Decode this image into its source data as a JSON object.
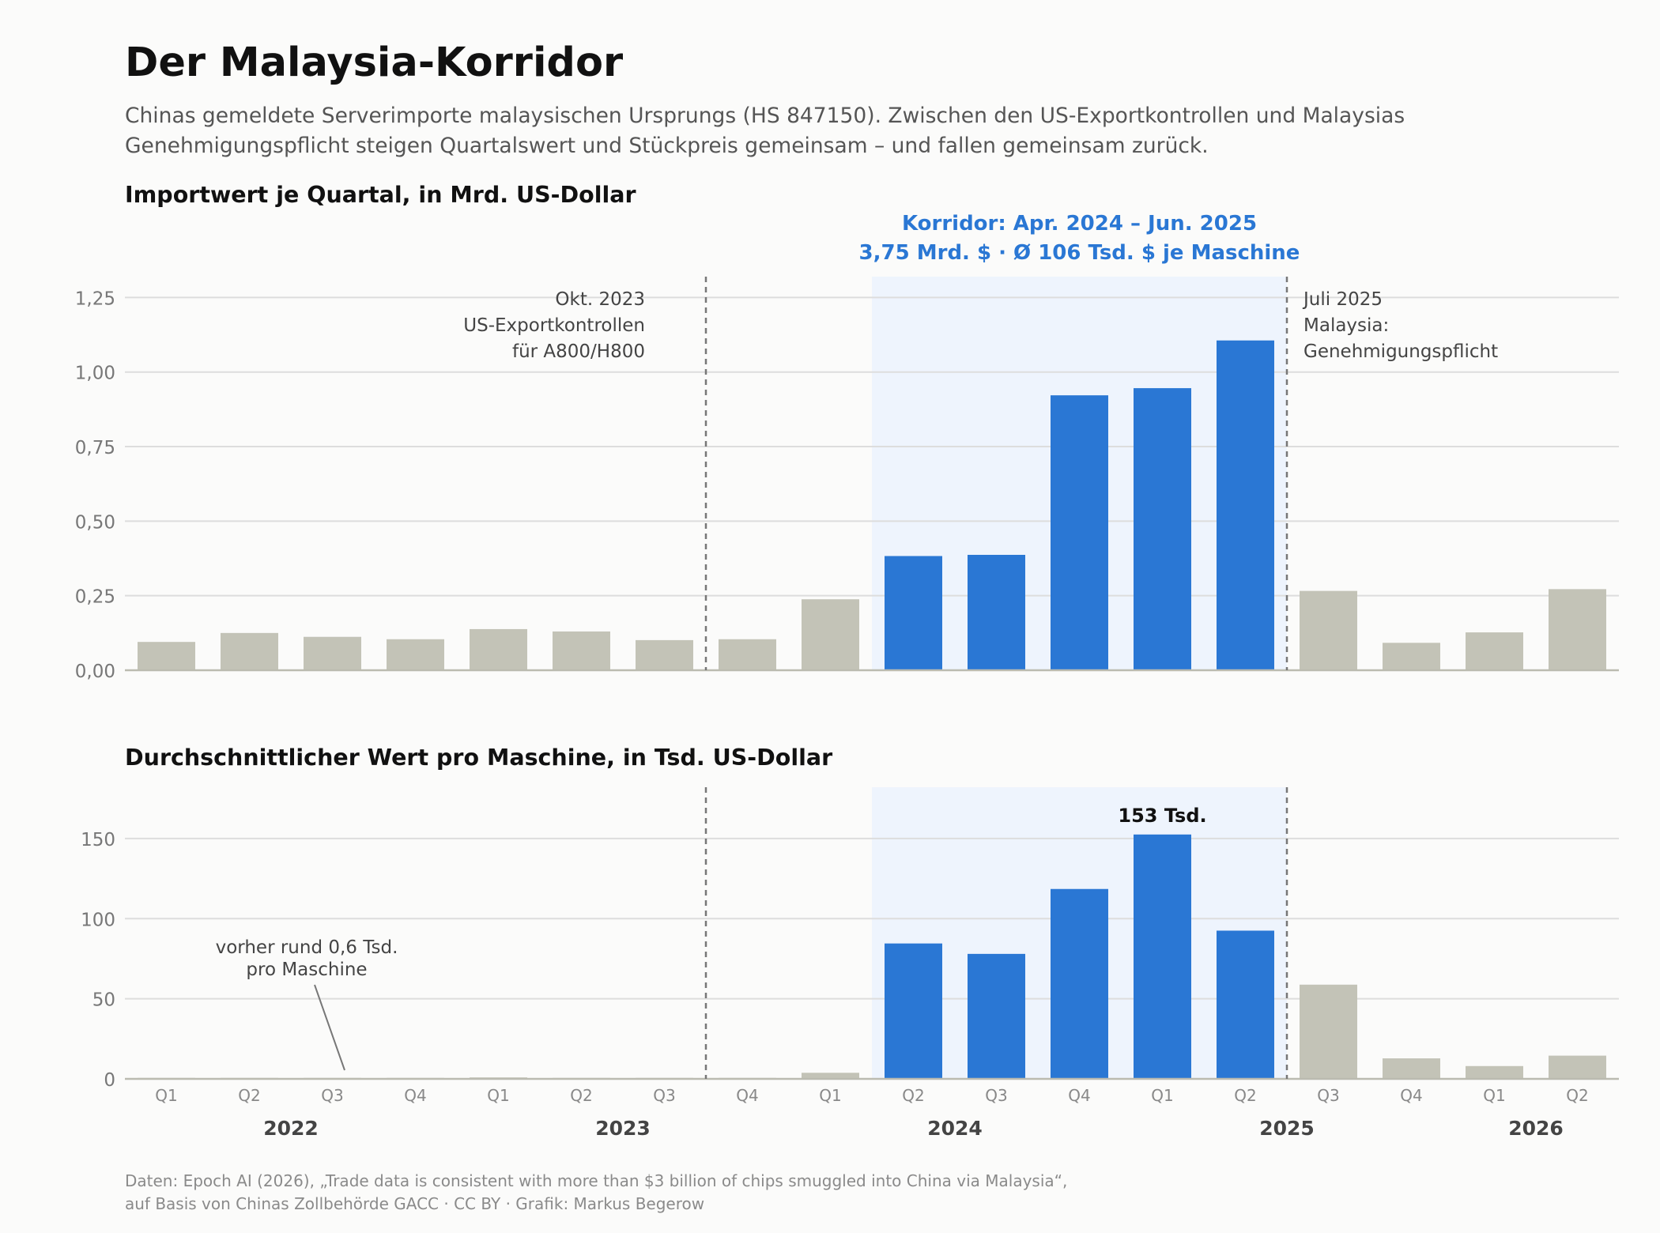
{
  "header": {
    "title": "Der Malaysia-Korridor",
    "subtitle_line1": "Chinas gemeldete Serverimporte malaysischen Ursprungs (HS 847150). Zwischen den US-Exportkontrollen und Malaysias",
    "subtitle_line2": "Genehmigungspflicht steigen Quartalswert und Stückpreis gemeinsam – und fallen gemeinsam zurück."
  },
  "footer": {
    "source_line1": "Daten: Epoch AI (2026), „Trade data is consistent with more than $3 billion of chips smuggled into China via Malaysia“,",
    "source_line2": "auf Basis von Chinas Zollbehörde GACC · CC BY · Grafik: Markus Begerow"
  },
  "colors": {
    "corridor_bar": "#2a77d4",
    "other_bar": "#c3c3b7",
    "corridor_band": "#eef4fd",
    "corridor_text": "#2a77d4",
    "grid": "#dddddd",
    "marker": "#777777"
  },
  "chart_data": [
    {
      "type": "bar",
      "title": "Importwert je Quartal, in Mrd. US-Dollar",
      "categories": [
        "2022 Q1",
        "2022 Q2",
        "2022 Q3",
        "2022 Q4",
        "2023 Q1",
        "2023 Q2",
        "2023 Q3",
        "2023 Q4",
        "2024 Q1",
        "2024 Q2",
        "2024 Q3",
        "2024 Q4",
        "2025 Q1",
        "2025 Q2",
        "2025 Q3",
        "2025 Q4",
        "2026 Q1",
        "2026 Q2"
      ],
      "values": [
        0.095,
        0.125,
        0.112,
        0.104,
        0.138,
        0.13,
        0.101,
        0.104,
        0.238,
        0.383,
        0.387,
        0.922,
        0.946,
        1.106,
        0.266,
        0.092,
        0.127,
        0.272
      ],
      "ylim": [
        0,
        1.32
      ],
      "yticks": [
        "0,00",
        "0,25",
        "0,50",
        "0,75",
        "1,00",
        "1,25"
      ],
      "ytick_values": [
        0,
        0.25,
        0.5,
        0.75,
        1.0,
        1.25
      ],
      "grid": true,
      "highlight_range": [
        "2024 Q2",
        "2025 Q2"
      ],
      "corridor_label_line1": "Korridor: Apr. 2024 – Jun. 2025",
      "corridor_label_line2": "3,75 Mrd. $ · Ø 106 Tsd. $ je Maschine",
      "events": [
        {
          "between": [
            "2023 Q3",
            "2023 Q4"
          ],
          "lines": [
            "Okt. 2023",
            "US-Exportkontrollen",
            "für A800/H800"
          ],
          "side": "left"
        },
        {
          "between": [
            "2025 Q2",
            "2025 Q3"
          ],
          "lines": [
            "Juli 2025",
            "Malaysia:",
            "Genehmigungspflicht"
          ],
          "side": "right"
        }
      ]
    },
    {
      "type": "bar",
      "title": "Durchschnittlicher Wert pro Maschine, in Tsd. US-Dollar",
      "categories": [
        "2022 Q1",
        "2022 Q2",
        "2022 Q3",
        "2022 Q4",
        "2023 Q1",
        "2023 Q2",
        "2023 Q3",
        "2023 Q4",
        "2024 Q1",
        "2024 Q2",
        "2024 Q3",
        "2024 Q4",
        "2025 Q1",
        "2025 Q2",
        "2025 Q3",
        "2025 Q4",
        "2026 Q1",
        "2026 Q2"
      ],
      "values": [
        0.6,
        0.6,
        0.6,
        0.6,
        0.9,
        0.6,
        0.6,
        0.6,
        3.8,
        84.5,
        78,
        118.5,
        152.5,
        92.5,
        58.8,
        12.8,
        8,
        14.5
      ],
      "ylim": [
        0,
        182
      ],
      "yticks": [
        "0",
        "50",
        "100",
        "150"
      ],
      "ytick_values": [
        0,
        50,
        100,
        150
      ],
      "grid": true,
      "highlight_range": [
        "2024 Q2",
        "2025 Q2"
      ],
      "peak_label": "153 Tsd.",
      "note_line1": "vorher rund 0,6 Tsd.",
      "note_line2": "pro Maschine",
      "xtick_labels": [
        "Q1",
        "Q2",
        "Q3",
        "Q4",
        "Q1",
        "Q2",
        "Q3",
        "Q4",
        "Q1",
        "Q2",
        "Q3",
        "Q4",
        "Q1",
        "Q2",
        "Q3",
        "Q4",
        "Q1",
        "Q2"
      ],
      "year_labels": [
        "2022",
        "2023",
        "2024",
        "2025",
        "2026"
      ]
    }
  ]
}
